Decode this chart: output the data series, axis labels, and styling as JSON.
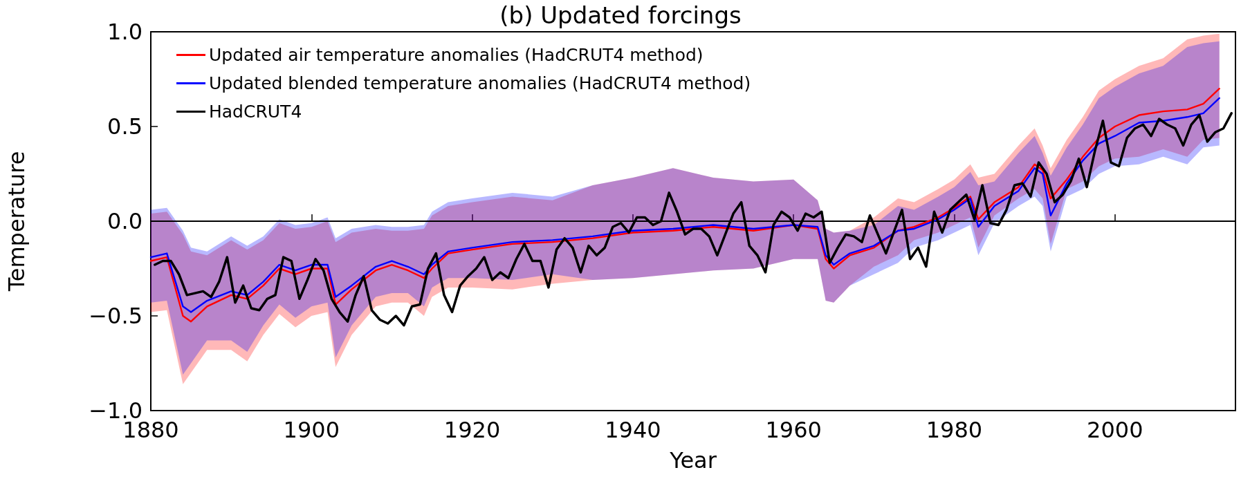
{
  "chart_data": {
    "type": "line",
    "title": "(b) Updated forcings",
    "xlabel": "Year",
    "ylabel": "Temperature",
    "xlim": [
      1880,
      2015
    ],
    "xticks": [
      1880,
      1900,
      1920,
      1940,
      1960,
      1980,
      2000
    ],
    "ylim": [
      -1,
      1
    ],
    "yticks": [
      {
        "value": -1,
        "label": "−1.0"
      },
      {
        "value": -0.5,
        "label": "−0.5"
      },
      {
        "value": 0,
        "label": "0.0"
      },
      {
        "value": 0.5,
        "label": "0.5"
      },
      {
        "value": 1,
        "label": "1.0"
      }
    ],
    "legend": "top left",
    "ref_lines": [
      {
        "axis": "y",
        "value": 0,
        "color": "#000000"
      }
    ],
    "series": [
      {
        "name": "Updated air temperature anomalies (HadCRUT4 method)",
        "color": "#ff0000",
        "x": [
          1880,
          1882,
          1884,
          1885,
          1887,
          1890,
          1892,
          1894,
          1896,
          1898,
          1900,
          1902,
          1903,
          1905,
          1908,
          1910,
          1912,
          1914,
          1915,
          1917,
          1920,
          1925,
          1930,
          1935,
          1940,
          1945,
          1950,
          1955,
          1960,
          1963,
          1964,
          1965,
          1967,
          1970,
          1973,
          1975,
          1978,
          1980,
          1982,
          1983,
          1985,
          1988,
          1990,
          1991,
          1992,
          1994,
          1996,
          1998,
          2000,
          2003,
          2006,
          2009,
          2011,
          2013
        ],
        "values": [
          -0.21,
          -0.19,
          -0.5,
          -0.53,
          -0.45,
          -0.39,
          -0.41,
          -0.34,
          -0.25,
          -0.28,
          -0.25,
          -0.25,
          -0.44,
          -0.36,
          -0.26,
          -0.23,
          -0.26,
          -0.3,
          -0.25,
          -0.17,
          -0.15,
          -0.12,
          -0.11,
          -0.09,
          -0.06,
          -0.05,
          -0.03,
          -0.05,
          -0.02,
          -0.04,
          -0.2,
          -0.25,
          -0.18,
          -0.14,
          -0.05,
          -0.03,
          0.02,
          0.07,
          0.13,
          0.01,
          0.1,
          0.18,
          0.3,
          0.27,
          0.12,
          0.22,
          0.34,
          0.44,
          0.5,
          0.56,
          0.58,
          0.59,
          0.62,
          0.7
        ],
        "upper": [
          0.04,
          0.05,
          -0.07,
          -0.16,
          -0.18,
          -0.1,
          -0.15,
          -0.1,
          -0.01,
          -0.04,
          -0.03,
          0,
          -0.11,
          -0.06,
          -0.04,
          -0.05,
          -0.05,
          -0.04,
          0.03,
          0.08,
          0.1,
          0.13,
          0.11,
          0.19,
          0.23,
          0.28,
          0.23,
          0.21,
          0.22,
          0.11,
          -0.04,
          -0.06,
          -0.05,
          0.02,
          0.12,
          0.1,
          0.17,
          0.22,
          0.3,
          0.23,
          0.25,
          0.4,
          0.49,
          0.4,
          0.28,
          0.43,
          0.55,
          0.69,
          0.75,
          0.82,
          0.86,
          0.96,
          0.98,
          0.99
        ],
        "lower": [
          -0.48,
          -0.47,
          -0.86,
          -0.8,
          -0.68,
          -0.68,
          -0.74,
          -0.6,
          -0.49,
          -0.56,
          -0.5,
          -0.48,
          -0.77,
          -0.6,
          -0.45,
          -0.43,
          -0.43,
          -0.5,
          -0.4,
          -0.35,
          -0.35,
          -0.36,
          -0.33,
          -0.31,
          -0.3,
          -0.28,
          -0.26,
          -0.25,
          -0.2,
          -0.2,
          -0.42,
          -0.43,
          -0.34,
          -0.24,
          -0.18,
          -0.1,
          -0.06,
          -0.02,
          0.02,
          -0.14,
          0.03,
          0.12,
          0.17,
          0.12,
          -0.12,
          0.17,
          0.21,
          0.29,
          0.33,
          0.34,
          0.38,
          0.34,
          0.43,
          0.44
        ]
      },
      {
        "name": "Updated blended temperature anomalies (HadCRUT4 method)",
        "color": "#0000ff",
        "x": [
          1880,
          1882,
          1884,
          1885,
          1887,
          1890,
          1892,
          1894,
          1896,
          1898,
          1900,
          1902,
          1903,
          1905,
          1908,
          1910,
          1912,
          1914,
          1915,
          1917,
          1920,
          1925,
          1930,
          1935,
          1940,
          1945,
          1950,
          1955,
          1960,
          1963,
          1964,
          1965,
          1967,
          1970,
          1973,
          1975,
          1978,
          1980,
          1982,
          1983,
          1985,
          1988,
          1990,
          1991,
          1992,
          1994,
          1996,
          1998,
          2000,
          2003,
          2006,
          2009,
          2011,
          2013
        ],
        "values": [
          -0.19,
          -0.17,
          -0.45,
          -0.48,
          -0.42,
          -0.37,
          -0.39,
          -0.32,
          -0.23,
          -0.26,
          -0.23,
          -0.23,
          -0.4,
          -0.34,
          -0.24,
          -0.21,
          -0.24,
          -0.28,
          -0.23,
          -0.16,
          -0.14,
          -0.11,
          -0.1,
          -0.08,
          -0.05,
          -0.04,
          -0.02,
          -0.04,
          -0.02,
          -0.03,
          -0.18,
          -0.23,
          -0.17,
          -0.13,
          -0.05,
          -0.04,
          0.01,
          0.06,
          0.12,
          -0.03,
          0.08,
          0.16,
          0.28,
          0.25,
          0.03,
          0.2,
          0.32,
          0.41,
          0.45,
          0.52,
          0.53,
          0.55,
          0.57,
          0.65
        ],
        "upper": [
          0.06,
          0.07,
          -0.05,
          -0.14,
          -0.16,
          -0.08,
          -0.13,
          -0.08,
          0.01,
          -0.02,
          -0.01,
          0.02,
          -0.09,
          -0.04,
          -0.02,
          -0.03,
          -0.03,
          -0.02,
          0.05,
          0.1,
          0.12,
          0.15,
          0.13,
          0.19,
          0.23,
          0.28,
          0.23,
          0.21,
          0.22,
          0.11,
          -0.04,
          -0.06,
          -0.05,
          -0.02,
          0.08,
          0.06,
          0.13,
          0.18,
          0.26,
          0.19,
          0.21,
          0.36,
          0.45,
          0.36,
          0.24,
          0.39,
          0.51,
          0.65,
          0.71,
          0.78,
          0.82,
          0.92,
          0.94,
          0.95
        ],
        "lower": [
          -0.43,
          -0.42,
          -0.81,
          -0.75,
          -0.63,
          -0.63,
          -0.69,
          -0.55,
          -0.44,
          -0.51,
          -0.45,
          -0.43,
          -0.72,
          -0.55,
          -0.4,
          -0.38,
          -0.38,
          -0.45,
          -0.35,
          -0.3,
          -0.3,
          -0.31,
          -0.28,
          -0.31,
          -0.3,
          -0.28,
          -0.26,
          -0.25,
          -0.2,
          -0.2,
          -0.42,
          -0.43,
          -0.34,
          -0.28,
          -0.22,
          -0.14,
          -0.1,
          -0.06,
          -0.02,
          -0.18,
          -0.01,
          0.08,
          0.13,
          0.08,
          -0.16,
          0.13,
          0.17,
          0.25,
          0.29,
          0.3,
          0.34,
          0.3,
          0.39,
          0.4
        ]
      },
      {
        "name": "HadCRUT4",
        "color": "#000000",
        "x": [
          1880.5,
          1881.5,
          1882.5,
          1883.5,
          1884.5,
          1885.5,
          1886.5,
          1887.5,
          1888.5,
          1889.5,
          1890.5,
          1891.5,
          1892.5,
          1893.5,
          1894.5,
          1895.5,
          1896.5,
          1897.5,
          1898.5,
          1899.5,
          1900.5,
          1901.5,
          1902.5,
          1903.5,
          1904.5,
          1905.5,
          1906.5,
          1907.5,
          1908.5,
          1909.5,
          1910.5,
          1911.5,
          1912.5,
          1913.5,
          1914.5,
          1915.5,
          1916.5,
          1917.5,
          1918.5,
          1919.5,
          1920.5,
          1921.5,
          1922.5,
          1923.5,
          1924.5,
          1925.5,
          1926.5,
          1927.5,
          1928.5,
          1929.5,
          1930.5,
          1931.5,
          1932.5,
          1933.5,
          1934.5,
          1935.5,
          1936.5,
          1937.5,
          1938.5,
          1939.5,
          1940.5,
          1941.5,
          1942.5,
          1943.5,
          1944.5,
          1945.5,
          1946.5,
          1947.5,
          1948.5,
          1949.5,
          1950.5,
          1951.5,
          1952.5,
          1953.5,
          1954.5,
          1955.5,
          1956.5,
          1957.5,
          1958.5,
          1959.5,
          1960.5,
          1961.5,
          1962.5,
          1963.5,
          1964.5,
          1965.5,
          1966.5,
          1967.5,
          1968.5,
          1969.5,
          1971.5,
          1973.5,
          1974.5,
          1975.5,
          1976.5,
          1977.5,
          1978.5,
          1979.5,
          1980.5,
          1981.5,
          1982.5,
          1983.5,
          1984.5,
          1985.5,
          1986.5,
          1987.5,
          1988.5,
          1989.5,
          1990.5,
          1991.5,
          1992.5,
          1993.5,
          1994.5,
          1995.5,
          1996.5,
          1997.5,
          1998.5,
          1999.5,
          2000.5,
          2001.5,
          2002.5,
          2003.5,
          2004.5,
          2005.5,
          2006.5,
          2007.5,
          2008.5,
          2009.5,
          2010.5,
          2011.5,
          2012.5,
          2013.5,
          2014.5
        ],
        "values": [
          -0.23,
          -0.21,
          -0.21,
          -0.28,
          -0.39,
          -0.38,
          -0.37,
          -0.4,
          -0.32,
          -0.19,
          -0.43,
          -0.34,
          -0.46,
          -0.47,
          -0.41,
          -0.39,
          -0.19,
          -0.21,
          -0.41,
          -0.31,
          -0.2,
          -0.26,
          -0.41,
          -0.48,
          -0.53,
          -0.39,
          -0.29,
          -0.47,
          -0.52,
          -0.54,
          -0.5,
          -0.55,
          -0.45,
          -0.44,
          -0.25,
          -0.17,
          -0.39,
          -0.48,
          -0.34,
          -0.29,
          -0.25,
          -0.19,
          -0.31,
          -0.27,
          -0.3,
          -0.2,
          -0.12,
          -0.21,
          -0.21,
          -0.35,
          -0.15,
          -0.09,
          -0.14,
          -0.27,
          -0.13,
          -0.18,
          -0.14,
          -0.03,
          -0.01,
          -0.06,
          0.02,
          0.02,
          -0.02,
          0,
          0.15,
          0.05,
          -0.07,
          -0.04,
          -0.04,
          -0.08,
          -0.18,
          -0.07,
          0.04,
          0.1,
          -0.13,
          -0.18,
          -0.27,
          -0.02,
          0.05,
          0.02,
          -0.05,
          0.04,
          0.02,
          0.05,
          -0.22,
          -0.14,
          -0.07,
          -0.08,
          -0.11,
          0.03,
          -0.17,
          0.06,
          -0.2,
          -0.14,
          -0.24,
          0.05,
          -0.06,
          0.06,
          0.1,
          0.14,
          0.01,
          0.19,
          -0.01,
          -0.02,
          0.06,
          0.19,
          0.2,
          0.13,
          0.31,
          0.25,
          0.1,
          0.14,
          0.21,
          0.33,
          0.18,
          0.37,
          0.53,
          0.31,
          0.29,
          0.44,
          0.49,
          0.51,
          0.45,
          0.54,
          0.51,
          0.49,
          0.4,
          0.51,
          0.56,
          0.42,
          0.47,
          0.49,
          0.57
        ]
      }
    ]
  }
}
